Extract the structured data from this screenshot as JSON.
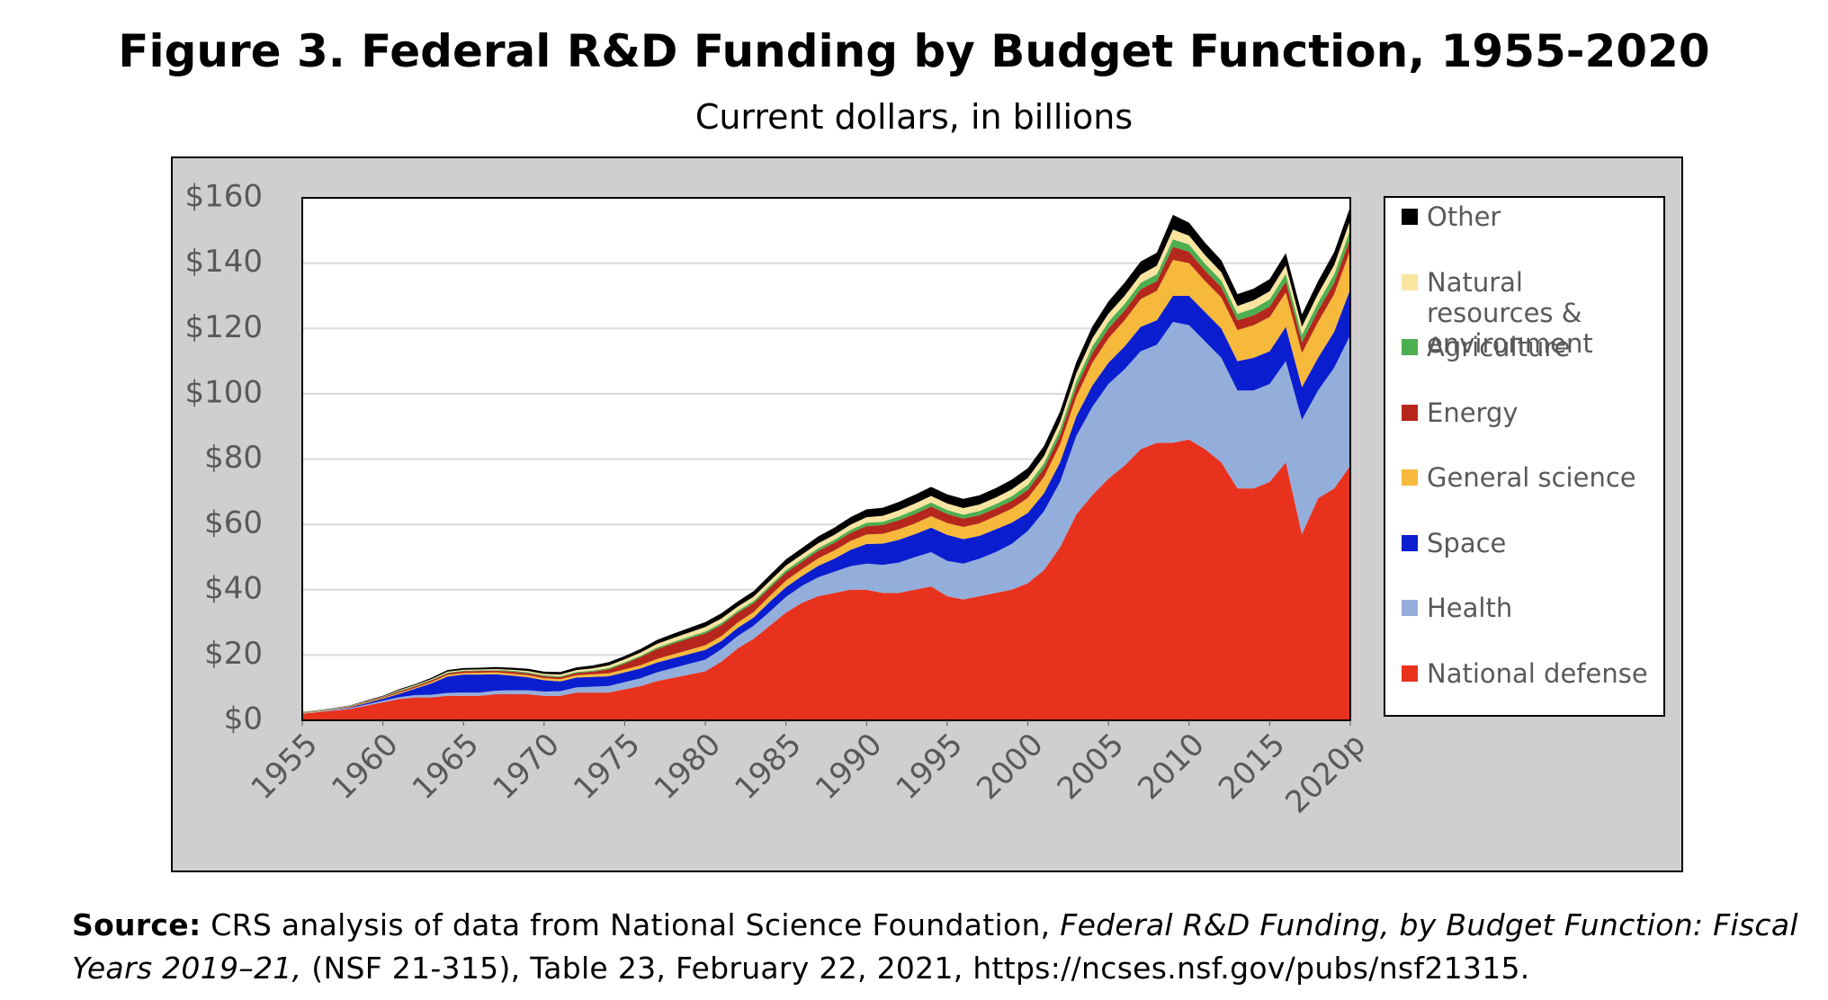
{
  "chart_data": {
    "type": "stacked_area",
    "title": "Figure 3. Federal R&D Funding by Budget Function, 1955-2020",
    "subtitle": "Current dollars, in billions",
    "x": [
      1955,
      1956,
      1957,
      1958,
      1959,
      1960,
      1961,
      1962,
      1963,
      1964,
      1965,
      1966,
      1967,
      1968,
      1969,
      1970,
      1971,
      1972,
      1973,
      1974,
      1975,
      1976,
      1977,
      1978,
      1979,
      1980,
      1981,
      1982,
      1983,
      1984,
      1985,
      1986,
      1987,
      1988,
      1989,
      1990,
      1991,
      1992,
      1993,
      1994,
      1995,
      1996,
      1997,
      1998,
      1999,
      2000,
      2001,
      2002,
      2003,
      2004,
      2005,
      2006,
      2007,
      2008,
      2009,
      2010,
      2011,
      2012,
      2013,
      2014,
      2015,
      2016,
      2017,
      2018,
      2019,
      2020
    ],
    "xlim": [
      1955,
      2020
    ],
    "xticks": [
      1955,
      1960,
      1965,
      1970,
      1975,
      1980,
      1985,
      1990,
      1995,
      2000,
      2005,
      2010,
      2015,
      {
        "value": 2020,
        "label": "2020p"
      }
    ],
    "ylim": [
      0,
      160
    ],
    "yticks": [
      {
        "value": 0,
        "label": "$0"
      },
      {
        "value": 20,
        "label": "$20"
      },
      {
        "value": 40,
        "label": "$40"
      },
      {
        "value": 60,
        "label": "$60"
      },
      {
        "value": 80,
        "label": "$80"
      },
      {
        "value": 100,
        "label": "$100"
      },
      {
        "value": 120,
        "label": "$120"
      },
      {
        "value": 140,
        "label": "$140"
      },
      {
        "value": 160,
        "label": "$160"
      }
    ],
    "grid": true,
    "legend": "right",
    "series": [
      {
        "name": "National defense",
        "color": "#e8321e",
        "values": [
          2,
          2.5,
          3,
          3.5,
          4.5,
          5.5,
          6.5,
          7,
          7,
          7.5,
          7.5,
          7.5,
          8,
          8,
          8,
          7.5,
          7.5,
          8.5,
          8.5,
          8.5,
          9.5,
          10.5,
          12,
          13,
          14,
          15,
          18,
          22,
          25,
          29,
          33,
          36,
          38,
          39,
          40,
          40,
          39,
          39,
          40,
          41,
          38,
          37,
          38,
          39,
          40,
          42,
          46,
          53,
          63,
          69,
          74,
          78,
          83,
          85,
          85,
          86,
          83,
          79,
          71,
          71,
          73,
          79,
          57,
          68,
          71,
          78
        ]
      },
      {
        "name": "Health",
        "color": "#94aedb",
        "values": [
          0.1,
          0.1,
          0.2,
          0.3,
          0.4,
          0.5,
          0.6,
          0.7,
          0.8,
          0.9,
          1,
          1,
          1.1,
          1.2,
          1.2,
          1.3,
          1.4,
          1.6,
          1.8,
          2,
          2.2,
          2.4,
          2.7,
          3,
          3.3,
          3.6,
          3.8,
          3.8,
          4,
          4.3,
          4.8,
          5.2,
          5.8,
          6.5,
          7.2,
          8,
          8.6,
          9.3,
          10,
          10.5,
          10.8,
          11,
          11.5,
          12.5,
          14,
          16,
          18,
          20,
          24,
          27,
          29,
          29.5,
          30,
          30,
          37,
          35,
          33,
          32,
          30,
          30,
          30,
          31,
          35,
          33,
          37,
          40
        ]
      },
      {
        "name": "Space",
        "color": "#0a1ecf",
        "values": [
          0,
          0,
          0.1,
          0.2,
          0.4,
          0.6,
          1,
          2,
          3.5,
          5,
          5.5,
          5.5,
          5,
          4.5,
          4,
          3.5,
          3,
          3,
          3,
          3,
          3,
          3,
          3,
          3,
          3,
          3,
          2.5,
          2.5,
          2.5,
          3,
          3,
          3,
          3.5,
          4,
          5,
          6,
          6.5,
          7,
          7,
          7.5,
          8,
          7.5,
          7,
          7,
          6.5,
          5.5,
          5.5,
          6,
          6,
          6.5,
          6.5,
          7,
          7.5,
          7.5,
          8,
          9,
          9,
          9,
          9,
          10,
          10,
          10.5,
          10,
          10,
          11,
          14
        ]
      },
      {
        "name": "General science",
        "color": "#f6b93b",
        "values": [
          0.05,
          0.1,
          0.1,
          0.1,
          0.2,
          0.2,
          0.3,
          0.3,
          0.4,
          0.5,
          0.5,
          0.6,
          0.6,
          0.6,
          0.6,
          0.6,
          0.7,
          0.7,
          0.8,
          0.9,
          0.9,
          1,
          1.1,
          1.2,
          1.3,
          1.4,
          1.5,
          1.6,
          1.7,
          1.8,
          2,
          2.1,
          2.3,
          2.5,
          2.7,
          2.9,
          3,
          3.2,
          3.3,
          3.5,
          3.6,
          3.7,
          3.8,
          4,
          4.3,
          4.6,
          5,
          5.5,
          6,
          7,
          7.5,
          8,
          8.5,
          9,
          11,
          10,
          9.5,
          9.5,
          9.5,
          10,
          10.5,
          10.5,
          10.5,
          11,
          11.5,
          12
        ]
      },
      {
        "name": "Energy",
        "color": "#b5271c",
        "values": [
          0.1,
          0.1,
          0.1,
          0.2,
          0.2,
          0.3,
          0.4,
          0.4,
          0.5,
          0.5,
          0.5,
          0.5,
          0.5,
          0.6,
          0.6,
          0.6,
          0.6,
          0.7,
          0.8,
          1.2,
          1.8,
          2.5,
          3,
          3.3,
          3.5,
          3.6,
          3.4,
          3,
          2.7,
          2.5,
          2.4,
          2.3,
          2.3,
          2.4,
          2.5,
          2.6,
          2.7,
          2.8,
          2.9,
          3,
          2.8,
          2.6,
          2.5,
          2.4,
          2.4,
          2.5,
          2.6,
          2.8,
          2.9,
          3,
          3,
          3,
          3,
          3,
          4,
          3.5,
          3.2,
          3.2,
          3,
          3,
          3.2,
          3.4,
          3.2,
          3.5,
          3.5,
          3.6
        ]
      },
      {
        "name": "Agriculture",
        "color": "#4caf50",
        "values": [
          0.1,
          0.1,
          0.1,
          0.1,
          0.1,
          0.1,
          0.2,
          0.2,
          0.2,
          0.2,
          0.2,
          0.2,
          0.2,
          0.3,
          0.3,
          0.3,
          0.3,
          0.3,
          0.3,
          0.4,
          0.4,
          0.4,
          0.5,
          0.5,
          0.5,
          0.6,
          0.6,
          0.6,
          0.7,
          0.7,
          0.8,
          0.8,
          0.8,
          0.9,
          0.9,
          1,
          1,
          1.1,
          1.2,
          1.2,
          1.2,
          1.2,
          1.3,
          1.3,
          1.4,
          1.5,
          1.6,
          1.8,
          1.9,
          2,
          2,
          2,
          2,
          2.1,
          2.3,
          2.2,
          2.1,
          2,
          2,
          2.1,
          2.2,
          2.3,
          2.3,
          2.4,
          2.6,
          2.7
        ]
      },
      {
        "name": "Natural resources & environment",
        "color": "#f9e4a0",
        "values": [
          0.1,
          0.1,
          0.1,
          0.1,
          0.1,
          0.1,
          0.2,
          0.2,
          0.2,
          0.3,
          0.3,
          0.3,
          0.3,
          0.3,
          0.4,
          0.4,
          0.5,
          0.6,
          0.7,
          0.8,
          0.9,
          1,
          1.1,
          1.2,
          1.3,
          1.4,
          1.4,
          1.3,
          1.3,
          1.4,
          1.4,
          1.4,
          1.5,
          1.5,
          1.6,
          1.7,
          1.8,
          1.9,
          2,
          2,
          2,
          2,
          2,
          2,
          2.1,
          2.1,
          2.2,
          2.3,
          2.4,
          2.5,
          2.5,
          2.5,
          2.5,
          2.6,
          3,
          2.7,
          2.6,
          2.5,
          2.4,
          2.5,
          2.5,
          2.6,
          2.5,
          2.7,
          2.8,
          2.9
        ]
      },
      {
        "name": "Other",
        "color": "#000000",
        "values": [
          0.1,
          0.1,
          0.1,
          0.1,
          0.2,
          0.2,
          0.3,
          0.3,
          0.4,
          0.5,
          0.5,
          0.5,
          0.6,
          0.6,
          0.7,
          0.7,
          0.8,
          0.8,
          0.9,
          1,
          1,
          1.1,
          1.2,
          1.3,
          1.4,
          1.5,
          1.6,
          1.6,
          1.7,
          1.8,
          1.9,
          2,
          2.1,
          2.2,
          2.3,
          2.4,
          2.5,
          2.6,
          2.7,
          2.8,
          2.8,
          2.8,
          2.8,
          2.9,
          3,
          3,
          3.1,
          3.2,
          3.4,
          3.6,
          3.8,
          4,
          4,
          4,
          4.5,
          4,
          3.8,
          3.7,
          3.6,
          3.6,
          3.7,
          3.8,
          3.8,
          3.9,
          4,
          4.1
        ]
      }
    ]
  },
  "source": {
    "label": "Source:",
    "text": "CRS analysis of data from  National Science Foundation,",
    "publication": "Federal R&D Funding, by Budget Function: Fiscal Years 2019–21,",
    "details": "(NSF 21-315), Table 23, February 22, 2021, https://ncses.nsf.gov/pubs/nsf21315."
  }
}
